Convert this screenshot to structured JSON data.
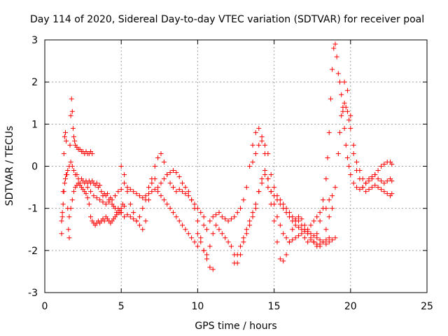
{
  "chart_data": {
    "type": "scatter",
    "title": "Day 114 of 2020, Sidereal Day-to-day VTEC variation (SDTVAR) for receiver poal",
    "xlabel": "GPS time / hours",
    "ylabel": "SDTVAR / TECUs",
    "xlim": [
      0,
      25
    ],
    "ylim": [
      -3,
      3
    ],
    "xticks": [
      "0",
      "5",
      "10",
      "15",
      "20",
      "25"
    ],
    "yticks": [
      "-3",
      "-2",
      "-1",
      "0",
      "1",
      "2",
      "3"
    ],
    "grid": true,
    "marker": "+",
    "color": "#ff0000",
    "series": [
      {
        "name": "SDTVAR",
        "x": [
          1.1,
          1.15,
          1.2,
          1.25,
          1.3,
          1.35,
          1.4,
          1.45,
          1.5,
          1.55,
          1.6,
          1.65,
          1.7,
          1.75,
          1.8,
          1.85,
          1.9,
          1.95,
          2.0,
          2.1,
          2.2,
          2.3,
          2.4,
          2.5,
          2.6,
          2.7,
          2.8,
          2.9,
          3.0,
          3.1,
          1.1,
          1.15,
          1.2,
          1.25,
          1.3,
          1.35,
          1.4,
          1.5,
          1.6,
          1.7,
          1.8,
          1.9,
          2.0,
          2.1,
          2.2,
          2.3,
          2.4,
          2.5,
          2.6,
          2.7,
          2.8,
          2.9,
          3.0,
          3.1,
          3.2,
          3.3,
          3.4,
          3.5,
          3.6,
          3.7,
          3.8,
          3.9,
          4.0,
          4.1,
          4.2,
          4.3,
          4.4,
          4.5,
          4.6,
          4.7,
          4.8,
          4.9,
          5.0,
          1.6,
          1.7,
          1.8,
          1.9,
          2.0,
          2.1,
          2.2,
          2.3,
          2.4,
          2.5,
          2.6,
          2.7,
          2.8,
          2.9,
          3.0,
          3.1,
          3.2,
          3.3,
          3.4,
          3.5,
          3.6,
          3.7,
          3.8,
          3.9,
          4.0,
          4.1,
          4.2,
          4.3,
          4.4,
          4.5,
          4.6,
          4.7,
          4.8,
          4.9,
          5.0,
          5.1,
          5.2,
          2.8,
          3.0,
          3.2,
          3.4,
          3.6,
          3.8,
          4.0,
          4.2,
          4.4,
          4.6,
          4.8,
          5.0,
          5.2,
          5.4,
          5.6,
          5.8,
          6.0,
          6.2,
          6.4,
          6.6,
          6.8,
          7.0,
          7.2,
          7.4,
          7.6,
          7.8,
          8.0,
          8.2,
          8.4,
          8.6,
          8.8,
          9.0,
          9.2,
          9.4,
          9.6,
          9.8,
          10.0,
          10.2,
          10.4,
          10.6,
          10.8,
          11.0,
          5.0,
          5.2,
          5.4,
          5.6,
          5.8,
          6.0,
          6.2,
          6.4,
          6.6,
          6.8,
          7.0,
          7.2,
          7.4,
          7.6,
          7.8,
          8.0,
          8.2,
          8.4,
          8.6,
          8.8,
          9.0,
          9.2,
          9.4,
          9.6,
          9.8,
          10.0,
          5.0,
          5.2,
          5.4,
          5.6,
          5.8,
          6.0,
          6.2,
          6.4,
          6.6,
          6.8,
          7.0,
          7.2,
          7.4,
          7.6,
          7.8,
          8.0,
          8.2,
          8.4,
          8.6,
          8.8,
          9.0,
          9.2,
          9.4,
          9.6,
          9.8,
          10.0,
          10.2,
          10.4,
          10.0,
          10.2,
          10.4,
          10.6,
          10.8,
          11.0,
          11.2,
          11.4,
          11.6,
          11.8,
          12.0,
          12.2,
          12.4,
          12.6,
          12.8,
          13.0,
          13.2,
          13.4,
          13.6,
          13.8,
          14.0,
          14.2,
          14.4,
          14.6,
          14.8,
          15.0,
          15.2,
          15.4,
          15.6,
          15.8,
          16.0,
          16.2,
          16.4,
          16.6,
          16.8,
          17.0,
          17.2,
          17.4,
          17.6,
          17.8,
          18.0,
          10.4,
          10.6,
          10.8,
          11.0,
          11.2,
          11.4,
          11.6,
          11.8,
          12.0,
          12.2,
          12.4,
          12.6,
          12.8,
          13.0,
          13.2,
          13.4,
          13.6,
          13.8,
          14.0,
          14.2,
          14.4,
          14.6,
          14.8,
          15.0,
          15.2,
          15.4,
          15.6,
          15.8,
          16.0,
          16.2,
          16.4,
          16.6,
          16.8,
          17.0,
          17.2,
          17.4,
          17.6,
          17.8,
          18.0,
          18.2,
          18.4,
          18.6,
          18.8,
          13.6,
          13.8,
          14.0,
          14.2,
          14.4,
          14.6,
          14.8,
          15.0,
          15.2,
          15.4,
          15.6,
          15.8,
          16.0,
          16.2,
          16.4,
          16.6,
          16.8,
          17.0,
          17.2,
          17.4,
          17.6,
          17.8,
          18.0,
          18.2,
          18.4,
          18.6,
          12.4,
          12.6,
          12.8,
          13.0,
          13.2,
          13.4,
          13.6,
          13.8,
          14.0,
          14.2,
          14.4,
          14.6,
          14.8,
          15.0,
          15.2,
          15.4,
          15.6,
          15.8,
          16.0,
          16.2,
          16.4,
          16.6,
          16.8,
          17.0,
          17.2,
          17.4,
          17.6,
          17.8,
          18.0,
          18.2,
          18.4,
          18.6,
          18.8,
          19.0,
          17.6,
          17.8,
          18.0,
          18.2,
          18.4,
          18.5,
          18.6,
          18.7,
          18.8,
          18.9,
          19.0,
          19.1,
          19.2,
          19.3,
          19.4,
          19.5,
          19.6,
          19.7,
          19.8,
          19.9,
          20.0,
          20.2,
          20.4,
          20.6,
          20.8,
          21.0,
          21.2,
          21.4,
          21.6,
          21.8,
          22.0,
          22.2,
          22.4,
          22.6,
          22.7,
          18.4,
          18.6,
          18.8,
          19.0,
          19.2,
          19.3,
          19.4,
          19.5,
          19.6,
          19.7,
          19.8,
          19.9,
          20.0,
          20.2,
          20.4,
          20.6,
          20.8,
          21.0,
          21.2,
          21.4,
          21.6,
          21.8,
          22.0,
          22.2,
          22.4,
          22.6,
          22.7,
          19.6,
          19.8,
          20.0,
          20.2,
          20.4,
          20.6,
          20.8,
          21.0,
          21.2,
          21.4,
          21.6,
          21.8,
          22.0,
          22.2,
          22.4,
          22.6,
          22.7
        ],
        "y": [
          -1.6,
          -1.2,
          -0.6,
          0.3,
          0.7,
          0.8,
          0.6,
          -0.2,
          -1.0,
          -1.5,
          -1.7,
          0.5,
          1.2,
          1.6,
          1.3,
          0.9,
          0.7,
          0.6,
          0.5,
          0.45,
          0.4,
          0.4,
          0.35,
          0.35,
          0.3,
          0.35,
          0.3,
          0.3,
          0.35,
          0.3,
          -1.3,
          -1.1,
          -0.9,
          -0.6,
          -0.4,
          -0.3,
          -0.2,
          -0.1,
          0.0,
          0.1,
          0.0,
          -0.1,
          -0.2,
          -0.2,
          -0.3,
          -0.4,
          -0.3,
          -0.35,
          -0.4,
          -0.35,
          -0.4,
          -0.35,
          -0.4,
          -0.35,
          -0.4,
          -0.45,
          -0.4,
          -0.5,
          -0.45,
          -0.6,
          -0.7,
          -0.65,
          -0.7,
          -0.65,
          -0.8,
          -0.75,
          -0.9,
          -0.95,
          -1.0,
          -1.1,
          -1.0,
          -1.1,
          -1.1,
          -1.2,
          -1.0,
          -0.8,
          -0.6,
          -0.5,
          -0.45,
          -0.4,
          -0.45,
          -0.5,
          -0.55,
          -0.6,
          -0.65,
          -0.75,
          -0.9,
          -1.2,
          -1.3,
          -1.35,
          -1.4,
          -1.35,
          -1.3,
          -1.35,
          -1.3,
          -1.25,
          -1.3,
          -1.2,
          -1.25,
          -1.3,
          -1.35,
          -1.3,
          -1.25,
          -1.2,
          -1.15,
          -1.1,
          -1.05,
          -1.0,
          -0.9,
          -0.95,
          -0.5,
          -0.6,
          -0.7,
          -0.75,
          -0.8,
          -0.85,
          -0.9,
          -0.85,
          -0.8,
          -0.7,
          -0.6,
          -0.55,
          -0.4,
          -0.5,
          -0.55,
          -0.6,
          -0.65,
          -0.7,
          -0.75,
          -0.7,
          -0.65,
          -0.6,
          -0.55,
          -0.5,
          -0.4,
          -0.3,
          -0.2,
          -0.15,
          -0.1,
          -0.15,
          -0.25,
          -0.4,
          -0.5,
          -0.6,
          -0.8,
          -1.0,
          -1.3,
          -1.7,
          -2.0,
          -2.2,
          -2.4,
          -2.45,
          0.0,
          -0.2,
          -0.6,
          -0.9,
          -1.1,
          -1.3,
          -1.2,
          -1.0,
          -0.8,
          -0.5,
          -0.4,
          -0.3,
          -0.6,
          -0.7,
          -0.8,
          -0.9,
          -1.0,
          -1.1,
          -1.2,
          -1.3,
          -1.4,
          -1.5,
          -1.6,
          -1.7,
          -1.8,
          -1.9,
          -1.1,
          -1.2,
          -1.15,
          -1.2,
          -1.25,
          -1.3,
          -1.4,
          -1.5,
          -1.3,
          -0.8,
          -0.3,
          0.0,
          0.2,
          0.3,
          0.1,
          -0.2,
          -0.4,
          -0.5,
          -0.6,
          -0.55,
          -0.6,
          -0.65,
          -0.7,
          -0.8,
          -0.9,
          -1.0,
          -1.1,
          -1.2,
          -1.6,
          -1.8,
          -2.0,
          -2.1,
          -1.9,
          -1.6,
          -1.4,
          -1.5,
          -1.6,
          -1.7,
          -1.8,
          -1.9,
          -2.1,
          -2.3,
          -2.1,
          -1.8,
          -1.6,
          -1.4,
          -1.2,
          -1.0,
          -0.6,
          -0.3,
          -0.1,
          -0.3,
          -0.6,
          -0.9,
          -1.2,
          -1.4,
          -1.6,
          -1.7,
          -1.8,
          -1.75,
          -1.7,
          -1.65,
          -1.6,
          -1.7,
          -1.8,
          -1.75,
          -1.8,
          -1.85,
          -1.9,
          -1.4,
          -1.5,
          -1.3,
          -1.2,
          -1.15,
          -1.1,
          -1.2,
          -1.25,
          -1.3,
          -1.25,
          -1.2,
          -1.1,
          -1.0,
          -0.8,
          -0.5,
          0.0,
          0.5,
          0.8,
          0.9,
          0.7,
          0.3,
          -0.3,
          -0.6,
          -0.7,
          -0.8,
          -0.9,
          -1.0,
          -1.1,
          -1.2,
          -1.3,
          -1.4,
          -1.45,
          -1.5,
          -1.55,
          -1.5,
          -1.4,
          -1.3,
          -1.2,
          -1.1,
          -1.0,
          -1.0,
          -0.8,
          -0.7,
          0.1,
          0.3,
          0.5,
          0.6,
          0.5,
          0.3,
          -0.2,
          -0.5,
          -0.7,
          -0.8,
          -0.9,
          -1.0,
          -1.1,
          -1.2,
          -1.25,
          -1.3,
          -1.4,
          -1.5,
          -1.6,
          -1.7,
          -1.8,
          -1.9,
          -1.85,
          -1.8,
          -1.75,
          -1.7,
          -2.3,
          -2.1,
          -1.9,
          -1.7,
          -1.5,
          -1.3,
          -1.1,
          -0.9,
          -0.6,
          -0.4,
          -0.2,
          -0.5,
          -0.9,
          -1.3,
          -1.8,
          -2.2,
          -2.25,
          -2.1,
          -1.8,
          -1.5,
          -1.3,
          -1.2,
          -1.25,
          -1.4,
          -1.55,
          -1.6,
          -1.65,
          -1.7,
          -1.75,
          -1.8,
          -1.85,
          -1.8,
          -1.75,
          -1.7,
          -1.8,
          -1.6,
          -1.3,
          -0.8,
          -0.3,
          0.2,
          0.8,
          1.6,
          2.3,
          2.8,
          2.9,
          2.6,
          2.2,
          2.0,
          1.7,
          1.3,
          0.9,
          0.5,
          0.2,
          0.0,
          -0.2,
          -0.4,
          -0.5,
          -0.55,
          -0.5,
          -0.4,
          -0.3,
          -0.25,
          -0.2,
          -0.1,
          0.0,
          0.05,
          0.1,
          0.1,
          0.05,
          -1.5,
          -1.2,
          -1.0,
          -0.5,
          0.3,
          0.8,
          1.2,
          1.4,
          1.5,
          1.4,
          1.3,
          1.1,
          0.9,
          0.5,
          0.1,
          -0.1,
          -0.3,
          -0.4,
          -0.35,
          -0.3,
          -0.2,
          -0.3,
          -0.35,
          -0.4,
          -0.35,
          -0.3,
          -0.35,
          2.0,
          1.8,
          1.2,
          0.3,
          -0.1,
          -0.3,
          -0.5,
          -0.6,
          -0.55,
          -0.5,
          -0.45,
          -0.5,
          -0.55,
          -0.6,
          -0.65,
          -0.7,
          -0.65
        ]
      }
    ]
  }
}
